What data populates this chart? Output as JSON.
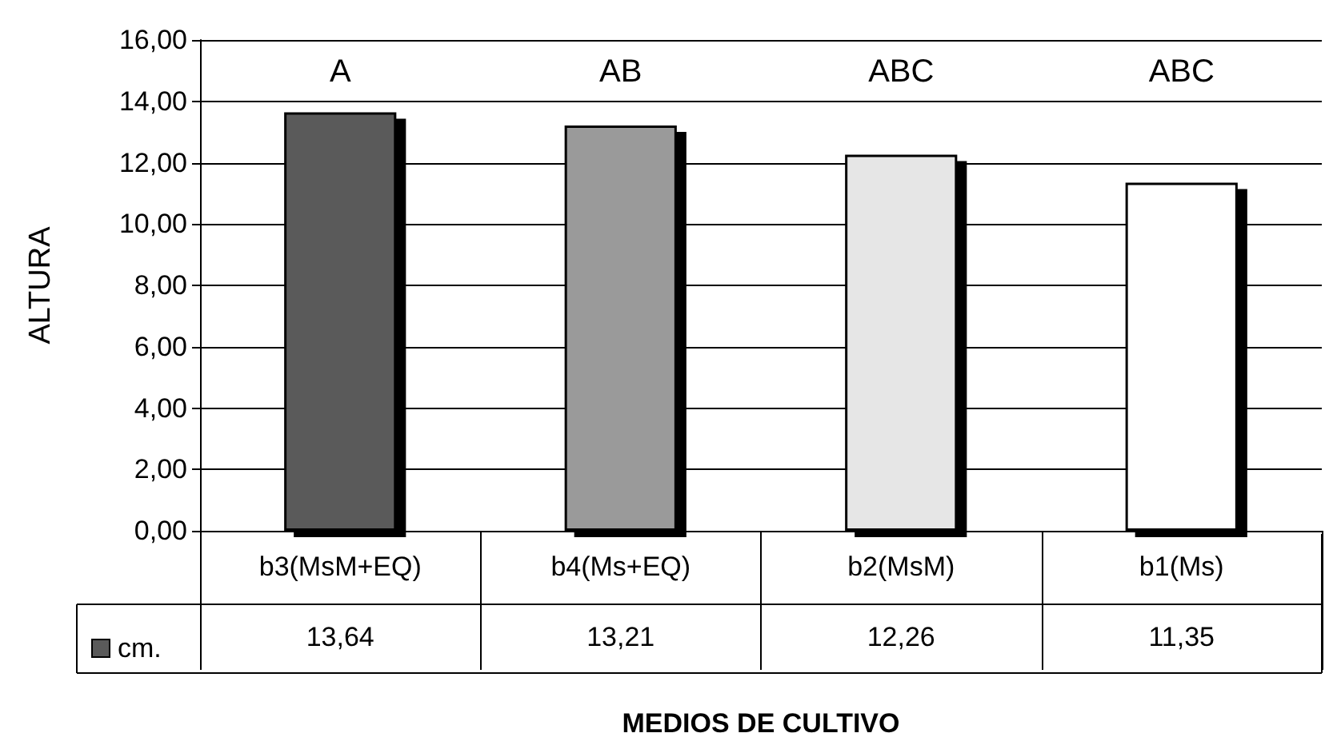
{
  "chart_data": {
    "type": "bar",
    "xlabel": "MEDIOS DE CULTIVO",
    "ylabel": "ALTURA",
    "categories": [
      "b3(MsM+EQ)",
      "b4(Ms+EQ)",
      "b2(MsM)",
      "b1(Ms)"
    ],
    "series": [
      {
        "name": "cm.",
        "colors": [
          "#5a5a5a",
          "#9a9a9a",
          "#e6e6e6",
          "#ffffff"
        ],
        "values": [
          13.64,
          13.21,
          12.26,
          11.35
        ],
        "value_labels": [
          "13,64",
          "13,21",
          "12,26",
          "11,35"
        ]
      }
    ],
    "ylim": [
      0,
      16
    ],
    "yticks": [
      {
        "value": 0,
        "label": "0,00"
      },
      {
        "value": 2,
        "label": "2,00"
      },
      {
        "value": 4,
        "label": "4,00"
      },
      {
        "value": 6,
        "label": "6,00"
      },
      {
        "value": 8,
        "label": "8,00"
      },
      {
        "value": 10,
        "label": "10,00"
      },
      {
        "value": 12,
        "label": "12,00"
      },
      {
        "value": 14,
        "label": "14,00"
      },
      {
        "value": 16,
        "label": "16,00"
      }
    ],
    "annotations": [
      "A",
      "AB",
      "ABC",
      "ABC"
    ],
    "grid": "y",
    "legend": "bottom left"
  }
}
